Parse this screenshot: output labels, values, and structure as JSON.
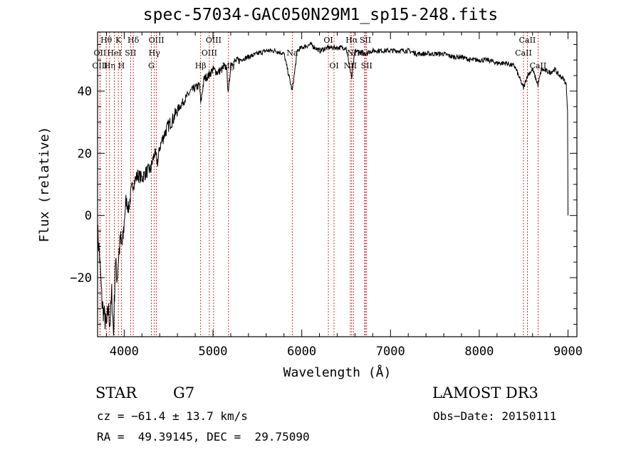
{
  "chart_data": {
    "type": "line",
    "title": "spec-57034-GAC050N29M1_sp15-248.fits",
    "xlabel": "Wavelength (Å)",
    "ylabel": "Flux (relative)",
    "xlim": [
      3700,
      9100
    ],
    "ylim": [
      -39,
      59
    ],
    "x_ticks": [
      4000,
      5000,
      6000,
      7000,
      8000,
      9000
    ],
    "y_ticks": [
      -20,
      0,
      20,
      40
    ],
    "series": [
      {
        "name": "flux",
        "x": [
          3700,
          3720,
          3750,
          3780,
          3800,
          3820,
          3840,
          3860,
          3880,
          3900,
          3920,
          3940,
          3960,
          3980,
          4000,
          4020,
          4050,
          4080,
          4100,
          4150,
          4200,
          4250,
          4300,
          4340,
          4380,
          4400,
          4450,
          4500,
          4550,
          4600,
          4650,
          4700,
          4750,
          4800,
          4850,
          4862,
          4900,
          4950,
          5000,
          5050,
          5100,
          5150,
          5175,
          5200,
          5300,
          5400,
          5500,
          5600,
          5700,
          5800,
          5893,
          5950,
          6000,
          6100,
          6200,
          6300,
          6400,
          6500,
          6563,
          6600,
          6700,
          6800,
          6900,
          7000,
          7100,
          7200,
          7300,
          7400,
          7500,
          7600,
          7700,
          7800,
          7900,
          8000,
          8100,
          8200,
          8300,
          8400,
          8498,
          8542,
          8600,
          8662,
          8700,
          8800,
          8850,
          8900,
          8950,
          8980,
          8995,
          9000
        ],
        "y": [
          -5,
          -12,
          -28,
          -33,
          -36,
          -30,
          -35,
          -25,
          -38,
          -15,
          -20,
          -12,
          -8,
          -10,
          -2,
          5,
          2,
          8,
          10,
          13,
          12,
          14,
          15,
          20,
          17,
          22,
          26,
          29,
          31,
          34,
          36,
          38,
          40,
          41,
          42,
          36,
          44,
          45,
          47,
          46,
          47,
          48,
          39,
          49,
          50,
          51,
          52,
          53,
          53,
          52,
          40,
          53,
          54,
          55,
          53,
          54,
          54,
          54,
          44,
          53,
          52,
          53,
          53,
          53,
          53,
          53,
          52,
          52,
          52,
          52,
          51,
          51,
          50,
          50,
          50,
          49,
          49,
          48,
          41,
          45,
          47,
          42,
          47,
          46,
          47,
          45,
          44,
          42,
          34,
          0
        ]
      }
    ],
    "lines": [
      {
        "label": "Hθ",
        "x": 3798,
        "row": 0
      },
      {
        "label": "OII",
        "x": 3727,
        "row": 1
      },
      {
        "label": "OIII",
        "x": 3727,
        "row": 2
      },
      {
        "label": "K",
        "x": 3934,
        "row": 0
      },
      {
        "label": "HeI",
        "x": 3889,
        "row": 1
      },
      {
        "label": "Hη",
        "x": 3835,
        "row": 2
      },
      {
        "label": "Hδ",
        "x": 4102,
        "row": 0
      },
      {
        "label": "SII",
        "x": 4072,
        "row": 1
      },
      {
        "label": "H",
        "x": 3968,
        "row": 2
      },
      {
        "label": "OIII",
        "x": 4363,
        "row": 0
      },
      {
        "label": "Hγ",
        "x": 4340,
        "row": 1
      },
      {
        "label": "G",
        "x": 4305,
        "row": 2
      },
      {
        "label": "OIII",
        "x": 5007,
        "row": 0
      },
      {
        "label": "OIII",
        "x": 4959,
        "row": 1
      },
      {
        "label": "Hβ",
        "x": 4861,
        "row": 2
      },
      {
        "label": "Mg",
        "x": 5175,
        "row": 2
      },
      {
        "label": "Na",
        "x": 5893,
        "row": 1
      },
      {
        "label": "OI",
        "x": 6300,
        "row": 0
      },
      {
        "label": "OI",
        "x": 6364,
        "row": 2
      },
      {
        "label": "Hα",
        "x": 6563,
        "row": 0
      },
      {
        "label": "SII",
        "x": 6717,
        "row": 0
      },
      {
        "label": "NII",
        "x": 6583,
        "row": 1
      },
      {
        "label": "Li",
        "x": 6708,
        "row": 1
      },
      {
        "label": "NII",
        "x": 6548,
        "row": 2
      },
      {
        "label": "SII",
        "x": 6731,
        "row": 2
      },
      {
        "label": "CaII",
        "x": 8542,
        "row": 0
      },
      {
        "label": "CaII",
        "x": 8498,
        "row": 1
      },
      {
        "label": "CaII",
        "x": 8662,
        "row": 2
      }
    ]
  },
  "info": {
    "class": "STAR",
    "subclass": "G7",
    "survey": "LAMOST DR3",
    "redshift": "cz = −61.4 ± 13.7 km/s",
    "obs_date": "Obs−Date: 20150111",
    "coords": "RA =  49.39145, DEC =  29.75090"
  },
  "colors": {
    "axis": "#000000",
    "spectrum": "#000000",
    "line_marker": "#cc0000"
  }
}
